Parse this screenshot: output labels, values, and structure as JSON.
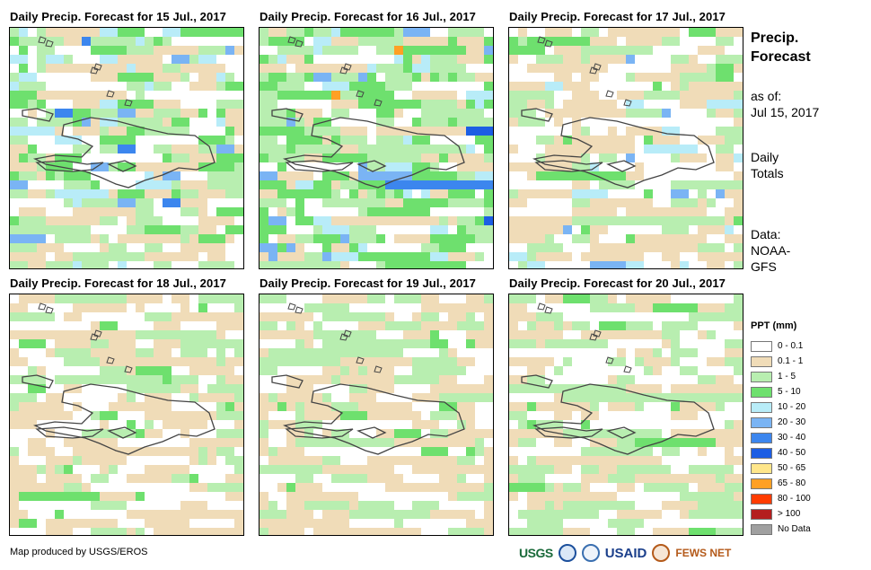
{
  "panels": [
    {
      "title": "Daily Precip. Forecast for 15 Jul., 2017"
    },
    {
      "title": "Daily Precip. Forecast for 16 Jul., 2017"
    },
    {
      "title": "Daily Precip. Forecast for 17 Jul., 2017"
    },
    {
      "title": "Daily Precip. Forecast for 18 Jul., 2017"
    },
    {
      "title": "Daily Precip. Forecast for 19 Jul., 2017"
    },
    {
      "title": "Daily Precip. Forecast for 20 Jul., 2017"
    }
  ],
  "side": {
    "title_line1": "Precip.",
    "title_line2": "Forecast",
    "asof_line1": "as of:",
    "asof_line2": "Jul 15, 2017",
    "totals_line1": "Daily",
    "totals_line2": "Totals",
    "data_line1": "Data:",
    "data_line2": "NOAA-",
    "data_line3": "GFS"
  },
  "legend": {
    "title": "PPT (mm)",
    "items": [
      {
        "label": "0 - 0.1",
        "color": "#ffffff"
      },
      {
        "label": "0.1 - 1",
        "color": "#f0dcb8"
      },
      {
        "label": "1 - 5",
        "color": "#b8eeb0"
      },
      {
        "label": "5 - 10",
        "color": "#6ee06e"
      },
      {
        "label": "10 - 20",
        "color": "#b8ecf8"
      },
      {
        "label": "20 - 30",
        "color": "#7ab4f4"
      },
      {
        "label": "30 - 40",
        "color": "#3c86ee"
      },
      {
        "label": "40 - 50",
        "color": "#1c5ee4"
      },
      {
        "label": "50 - 65",
        "color": "#ffe68a"
      },
      {
        "label": "65 - 80",
        "color": "#ffa024"
      },
      {
        "label": "80 - 100",
        "color": "#ff3c00"
      },
      {
        "label": "> 100",
        "color": "#b41e1e"
      },
      {
        "label": "No Data",
        "color": "#a0a0a0"
      }
    ]
  },
  "credit": "Map produced by USGS/EROS",
  "logos": {
    "usgs": "USGS",
    "usaid": "USAID",
    "fews": "FEWS NET"
  }
}
